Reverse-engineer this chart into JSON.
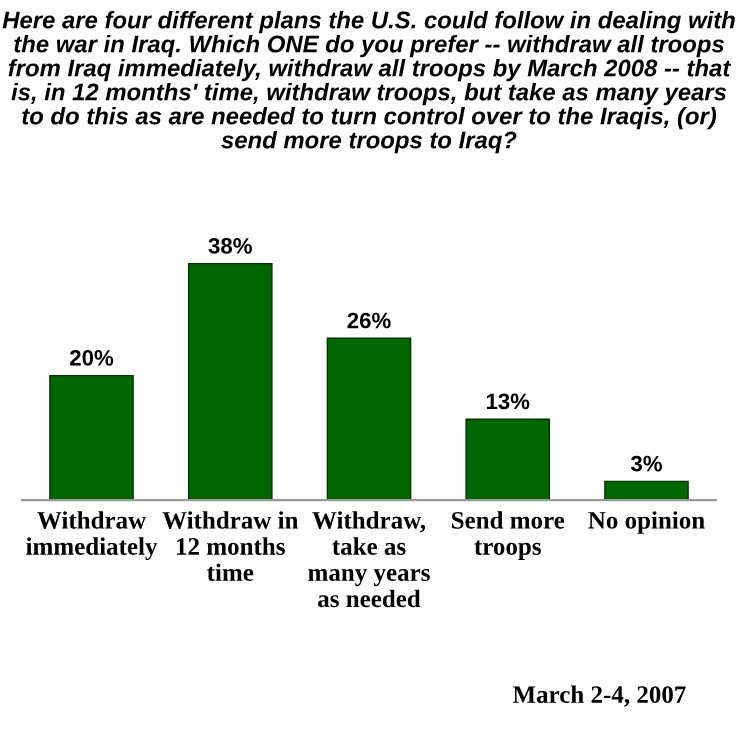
{
  "chart_data": {
    "type": "bar",
    "title": "Here are four different plans the U.S. could follow in dealing with the war in Iraq. Which ONE do you prefer -- withdraw all troops from Iraq immediately, withdraw all troops by March 2008 -- that is, in 12 months' time, withdraw troops, but take as many years to do this as are needed to turn control over to the Iraqis, (or) send more troops to Iraq?",
    "categories": [
      "Withdraw\nimmediately",
      "Withdraw in\n12 months\ntime",
      "Withdraw,\ntake as\nmany years\nas needed",
      "Send more\ntroops",
      "No opinion"
    ],
    "values": [
      20,
      38,
      26,
      13,
      3
    ],
    "value_labels": [
      "20%",
      "38%",
      "26%",
      "13%",
      "3%"
    ],
    "color": "#006600",
    "grid": false,
    "legend": false,
    "annotations": [
      "March 2-4, 2007"
    ]
  }
}
